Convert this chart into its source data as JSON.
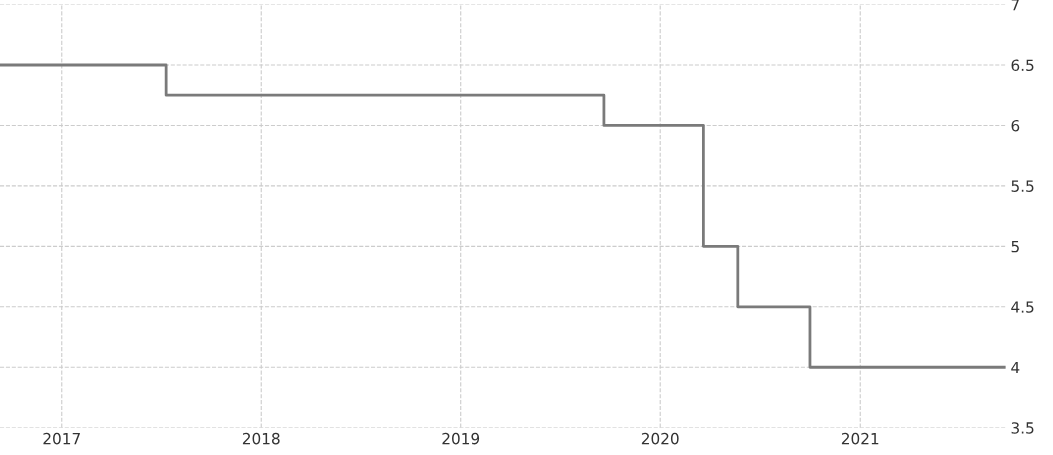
{
  "chart_data": {
    "type": "step",
    "x": [
      "2016-09-10",
      "2017-07-11",
      "2019-09-20",
      "2020-03-20",
      "2020-05-22",
      "2020-10-01",
      "2021-09-24"
    ],
    "series": [
      {
        "color": "#7a7a7a",
        "values": [
          6.5,
          6.25,
          6.0,
          5.0,
          4.5,
          4.0,
          4.0
        ]
      }
    ],
    "xlim": [
      "2016-09-10",
      "2021-09-24"
    ],
    "xticks": [
      {
        "value": "2017-01-01",
        "label": "2017"
      },
      {
        "value": "2018-01-01",
        "label": "2018"
      },
      {
        "value": "2019-01-01",
        "label": "2019"
      },
      {
        "value": "2020-01-01",
        "label": "2020"
      },
      {
        "value": "2021-01-01",
        "label": "2021"
      }
    ],
    "ylim": [
      3.5,
      7
    ],
    "yticks": [
      3.5,
      4,
      4.5,
      5,
      5.5,
      6,
      6.5,
      7
    ],
    "grid": true,
    "legend": false,
    "line_style": "solid"
  }
}
